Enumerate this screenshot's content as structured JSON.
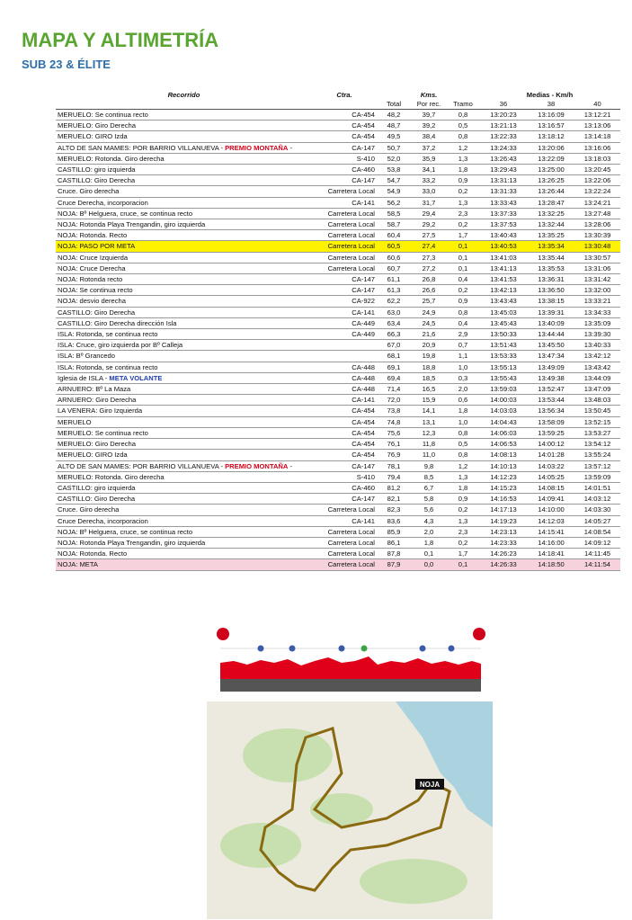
{
  "header": {
    "title": "MAPA Y ALTIMETRÍA",
    "subtitle": "SUB 23 & ÉLITE"
  },
  "table": {
    "head": {
      "route": "Recorrido",
      "road": "Ctra.",
      "kms": "Kms.",
      "speeds": "Medias - Km/h",
      "sub": [
        "Total",
        "Por rec.",
        "Tramo",
        "36",
        "38",
        "40"
      ]
    },
    "rows": [
      {
        "cells": [
          "MERUELO: Se continua recto",
          "CA-454",
          "48,2",
          "39,7",
          "0,8",
          "13:20:23",
          "13:16:09",
          "13:12:21"
        ]
      },
      {
        "cells": [
          "MERUELO: Giro Derecha",
          "CA-454",
          "48,7",
          "39,2",
          "0,5",
          "13:21:13",
          "13:16:57",
          "13:13:06"
        ]
      },
      {
        "cells": [
          "MERUELO: GIRO Izda",
          "CA-454",
          "49,5",
          "38,4",
          "0,8",
          "13:22:33",
          "13:18:12",
          "13:14:18"
        ]
      },
      {
        "cells": [
          [
            "ALTO DE SAN MAMES: POR BARRIO VILLANUEVA - ",
            "PREMIO MONTAÑA",
            " -"
          ],
          "CA-147",
          "50,7",
          "37,2",
          "1,2",
          "13:24:33",
          "13:20:06",
          "13:16:06"
        ],
        "accent": "#d0021b"
      },
      {
        "cells": [
          "MERUELO: Rotonda. Giro derecha",
          "S-410",
          "52,0",
          "35,9",
          "1,3",
          "13:26:43",
          "13:22:09",
          "13:18:03"
        ]
      },
      {
        "cells": [
          "CASTILLO: giro izquierda",
          "CA-460",
          "53,8",
          "34,1",
          "1,8",
          "13:29:43",
          "13:25:00",
          "13:20:45"
        ]
      },
      {
        "cells": [
          "CASTILLO: Giro Derecha",
          "CA-147",
          "54,7",
          "33,2",
          "0,9",
          "13:31:13",
          "13:26:25",
          "13:22:06"
        ]
      },
      {
        "cells": [
          "Cruce. Giro derecha",
          "Carretera Local",
          "54,9",
          "33,0",
          "0,2",
          "13:31:33",
          "13:26:44",
          "13:22:24"
        ]
      },
      {
        "cells": [
          "Cruce Derecha, incorporacion",
          "CA-141",
          "56,2",
          "31,7",
          "1,3",
          "13:33:43",
          "13:28:47",
          "13:24:21"
        ]
      },
      {
        "cells": [
          "NOJA: Bº Helguera, cruce, se continua recto",
          "Carretera Local",
          "58,5",
          "29,4",
          "2,3",
          "13:37:33",
          "13:32:25",
          "13:27:48"
        ]
      },
      {
        "cells": [
          "NOJA: Rotonda Playa Trengandin, giro izquierda",
          "Carretera Local",
          "58,7",
          "29,2",
          "0,2",
          "13:37:53",
          "13:32:44",
          "13:28:06"
        ]
      },
      {
        "cells": [
          "NOJA: Rotonda. Recto",
          "Carretera Local",
          "60,4",
          "27,5",
          "1,7",
          "13:40:43",
          "13:35:25",
          "13:30:39"
        ]
      },
      {
        "cells": [
          "NOJA: PASO POR META",
          "Carretera Local",
          "60,5",
          "27,4",
          "0,1",
          "13:40:53",
          "13:35:34",
          "13:30:48"
        ],
        "fill": "#fff200"
      },
      {
        "cells": [
          "NOJA: Cruce Izquierda",
          "Carretera Local",
          "60,6",
          "27,3",
          "0,1",
          "13:41:03",
          "13:35:44",
          "13:30:57"
        ]
      },
      {
        "cells": [
          "NOJA: Cruce Derecha",
          "Carretera Local",
          "60,7",
          "27,2",
          "0,1",
          "13:41:13",
          "13:35:53",
          "13:31:06"
        ]
      },
      {
        "cells": [
          "NOJA: Rotonda recto",
          "CA-147",
          "61,1",
          "26,8",
          "0,4",
          "13:41:53",
          "13:36:31",
          "13:31:42"
        ]
      },
      {
        "cells": [
          "NOJA: Se continua recto",
          "CA-147",
          "61,3",
          "26,6",
          "0,2",
          "13:42:13",
          "13:36:50",
          "13:32:00"
        ]
      },
      {
        "cells": [
          "NOJA: desvio derecha",
          "CA-922",
          "62,2",
          "25,7",
          "0,9",
          "13:43:43",
          "13:38:15",
          "13:33:21"
        ]
      },
      {
        "cells": [
          "CASTILLO: Giro Derecha",
          "CA-141",
          "63,0",
          "24,9",
          "0,8",
          "13:45:03",
          "13:39:31",
          "13:34:33"
        ]
      },
      {
        "cells": [
          "CASTILLO: Giro Derecha dirección Isla",
          "CA-449",
          "63,4",
          "24,5",
          "0,4",
          "13:45:43",
          "13:40:09",
          "13:35:09"
        ]
      },
      {
        "cells": [
          "ISLA: Rotonda,  se continua recto",
          "CA-449",
          "66,3",
          "21,6",
          "2,9",
          "13:50:33",
          "13:44:44",
          "13:39:30"
        ]
      },
      {
        "cells": [
          "ISLA: Cruce, giro izquierda por Bº Calleja",
          null,
          "67,0",
          "20,9",
          "0,7",
          "13:51:43",
          "13:45:50",
          "13:40:33"
        ]
      },
      {
        "cells": [
          "ISLA: Bº Grancedo",
          null,
          "68,1",
          "19,8",
          "1,1",
          "13:53:33",
          "13:47:34",
          "13:42:12"
        ]
      },
      {
        "cells": [
          "ISLA: Rotonda,  se continua recto",
          "CA-448",
          "69,1",
          "18,8",
          "1,0",
          "13:55:13",
          "13:49:09",
          "13:43:42"
        ]
      },
      {
        "cells": [
          [
            "Iglesia de ISLA - ",
            "META VOLANTE"
          ],
          "CA-448",
          "69,4",
          "18,5",
          "0,3",
          "13:55:43",
          "13:49:38",
          "13:44:09"
        ],
        "accent": "#1f3fa8"
      },
      {
        "cells": [
          "ARNUERO: Bº La Maza",
          "CA-448",
          "71,4",
          "16,5",
          "2,0",
          "13:59:03",
          "13:52:47",
          "13:47:09"
        ]
      },
      {
        "cells": [
          "ARNUERO: Giro Derecha",
          "CA-141",
          "72,0",
          "15,9",
          "0,6",
          "14:00:03",
          "13:53:44",
          "13:48:03"
        ]
      },
      {
        "cells": [
          "LA VENERA: Giro Izquierda",
          "CA-454",
          "73,8",
          "14,1",
          "1,8",
          "14:03:03",
          "13:56:34",
          "13:50:45"
        ]
      },
      {
        "cells": [
          "MERUELO",
          "CA-454",
          "74,8",
          "13,1",
          "1,0",
          "14:04:43",
          "13:58:09",
          "13:52:15"
        ]
      },
      {
        "cells": [
          "MERUELO: Se continua recto",
          "CA-454",
          "75,6",
          "12,3",
          "0,8",
          "14:06:03",
          "13:59:25",
          "13:53:27"
        ]
      },
      {
        "cells": [
          "MERUELO: Giro Derecha",
          "CA-454",
          "76,1",
          "11,8",
          "0,5",
          "14:06:53",
          "14:00:12",
          "13:54:12"
        ]
      },
      {
        "cells": [
          "MERUELO: GIRO Izda",
          "CA-454",
          "76,9",
          "11,0",
          "0,8",
          "14:08:13",
          "14:01:28",
          "13:55:24"
        ]
      },
      {
        "cells": [
          [
            "ALTO DE SAN MAMES: POR BARRIO VILLANUEVA - ",
            "PREMIO MONTAÑA",
            " -"
          ],
          "CA-147",
          "78,1",
          "9,8",
          "1,2",
          "14:10:13",
          "14:03:22",
          "13:57:12"
        ],
        "accent": "#d0021b"
      },
      {
        "cells": [
          "MERUELO: Rotonda. Giro derecha",
          "S-410",
          "79,4",
          "8,5",
          "1,3",
          "14:12:23",
          "14:05:25",
          "13:59:09"
        ]
      },
      {
        "cells": [
          "CASTILLO: giro izquierda",
          "CA-460",
          "81,2",
          "6,7",
          "1,8",
          "14:15:23",
          "14:08:15",
          "14:01:51"
        ]
      },
      {
        "cells": [
          "CASTILLO: Giro Derecha",
          "CA-147",
          "82,1",
          "5,8",
          "0,9",
          "14:16:53",
          "14:09:41",
          "14:03:12"
        ]
      },
      {
        "cells": [
          "Cruce. Giro derecha",
          "Carretera Local",
          "82,3",
          "5,6",
          "0,2",
          "14:17:13",
          "14:10:00",
          "14:03:30"
        ]
      },
      {
        "cells": [
          "Cruce Derecha, incorporacion",
          "CA-141",
          "83,6",
          "4,3",
          "1,3",
          "14:19:23",
          "14:12:03",
          "14:05:27"
        ]
      },
      {
        "cells": [
          "NOJA: Bº Helguera, cruce, se continua recto",
          "Carretera Local",
          "85,9",
          "2,0",
          "2,3",
          "14:23:13",
          "14:15:41",
          "14:08:54"
        ]
      },
      {
        "cells": [
          "NOJA: Rotonda Playa Trengandin, giro izquierda",
          "Carretera Local",
          "86,1",
          "1,8",
          "0,2",
          "14:23:33",
          "14:16:00",
          "14:09:12"
        ]
      },
      {
        "cells": [
          "NOJA: Rotonda. Recto",
          "Carretera Local",
          "87,8",
          "0,1",
          "1,7",
          "14:26:23",
          "14:18:41",
          "14:11:45"
        ]
      },
      {
        "cells": [
          "NOJA: META",
          "Carretera Local",
          "87,9",
          "0,0",
          "0,1",
          "14:26:33",
          "14:18:50",
          "14:11:54"
        ],
        "fill": "#f6d3dc"
      }
    ]
  },
  "map": {
    "town": "NOJA"
  }
}
